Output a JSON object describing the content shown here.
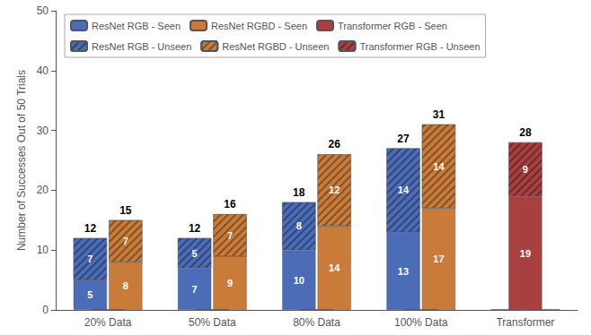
{
  "chart_data": {
    "type": "bar",
    "categories": [
      "20% Data",
      "50% Data",
      "80% Data",
      "100% Data",
      "Transformer"
    ],
    "ylabel": "Number of Successes Out of 50 Trials",
    "ylim": [
      0,
      50
    ],
    "yticks": [
      0,
      10,
      20,
      30,
      40,
      50
    ],
    "stacked": true,
    "data_labels": true,
    "grid": false,
    "legend": "upper left",
    "stacks": [
      {
        "series": [
          {
            "name": "ResNet RGB - Seen",
            "color": "#4b6cb7",
            "values": [
              5,
              7,
              10,
              13,
              0
            ]
          },
          {
            "name": "ResNet RGB - Unseen",
            "color": "#4b6cb7",
            "values": [
              7,
              5,
              8,
              14,
              0
            ]
          }
        ],
        "totals": [
          12,
          12,
          18,
          27,
          0
        ]
      },
      {
        "series": [
          {
            "name": "ResNet RGBD - Seen",
            "color": "#c97b3a",
            "values": [
              8,
              9,
              14,
              17,
              0
            ]
          },
          {
            "name": "ResNet RGBD - Unseen",
            "color": "#c97b3a",
            "values": [
              7,
              7,
              12,
              14,
              0
            ]
          }
        ],
        "totals": [
          15,
          16,
          26,
          31,
          0
        ]
      },
      {
        "series": [
          {
            "name": "Transformer RGB - Seen",
            "color": "#a84040",
            "values": [
              0,
              0,
              0,
              0,
              19
            ]
          },
          {
            "name": "Transformer RGB - Unseen",
            "color": "#a84040",
            "values": [
              0,
              0,
              0,
              0,
              9
            ]
          }
        ],
        "totals": [
          0,
          0,
          0,
          0,
          28
        ]
      }
    ]
  }
}
